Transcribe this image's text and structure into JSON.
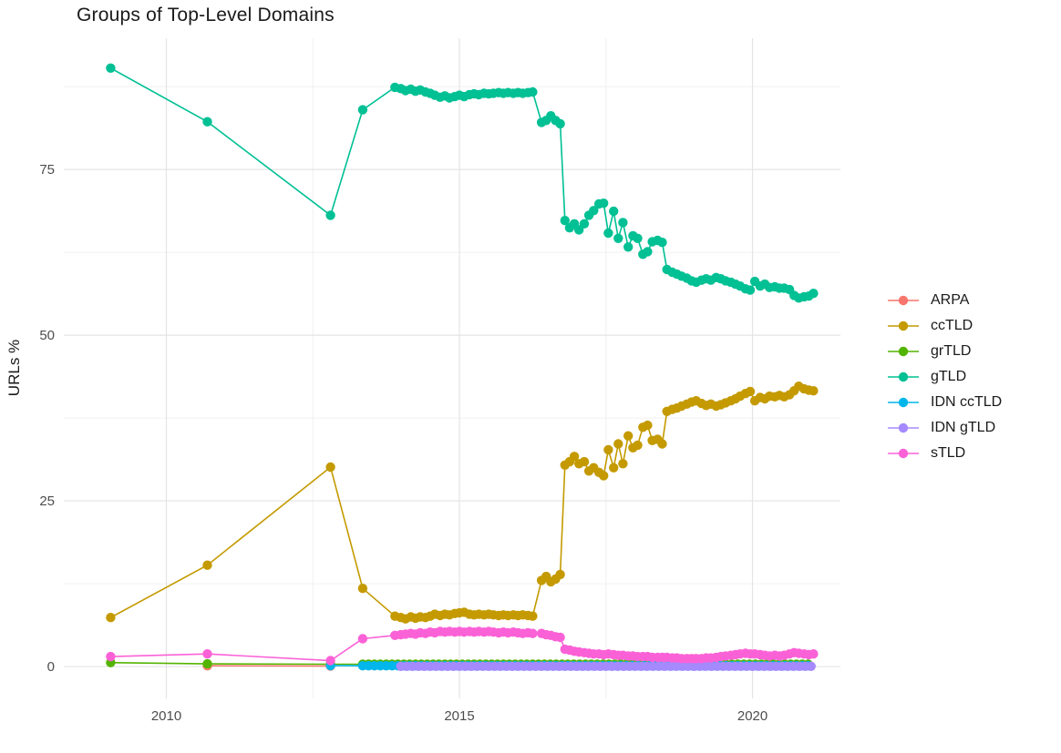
{
  "chart_data": {
    "type": "scatter",
    "title": "Groups of Top-Level Domains",
    "ylabel": "URLs %",
    "xlabel": "",
    "grid": "major+minor",
    "legend_position": "right",
    "x_range": [
      2008.25,
      2021.5
    ],
    "y_range": [
      -4.8,
      94.8
    ],
    "x_ticks": [
      2010,
      2015,
      2020
    ],
    "x_tick_labels": [
      "2010",
      "2015",
      "2020"
    ],
    "x_minor_ticks": [
      2012.5,
      2017.5
    ],
    "y_ticks": [
      0,
      25,
      50,
      75
    ],
    "y_tick_labels": [
      "0",
      "25",
      "50",
      "75"
    ],
    "y_minor_ticks": [
      12.5,
      37.5,
      62.5,
      87.5
    ],
    "grid_major_color": "#e4e4e4",
    "grid_minor_color": "#f0f0f0",
    "tick_label_color": "#4d4d4d",
    "series": [
      {
        "name": "ARPA",
        "color": "#F8766D",
        "points": [
          [
            2010.7,
            0.12
          ],
          [
            2012.8,
            0.08
          ]
        ]
      },
      {
        "name": "ccTLD",
        "color": "#C49A00",
        "points": [
          [
            2009.05,
            7.4
          ],
          [
            2010.7,
            15.3
          ],
          [
            2012.8,
            30.1
          ],
          [
            2013.35,
            11.8
          ],
          [
            2013.9,
            7.6
          ],
          [
            2014,
            7.4
          ],
          [
            2014.08,
            7.2
          ],
          [
            2014.17,
            7.5
          ],
          [
            2014.25,
            7.3
          ],
          [
            2014.33,
            7.5
          ],
          [
            2014.42,
            7.4
          ],
          [
            2014.5,
            7.6
          ],
          [
            2014.58,
            7.9
          ],
          [
            2014.67,
            7.7
          ],
          [
            2014.75,
            7.9
          ],
          [
            2014.83,
            7.8
          ],
          [
            2014.92,
            8.0
          ],
          [
            2015,
            8.1
          ],
          [
            2015.08,
            8.2
          ],
          [
            2015.17,
            7.9
          ],
          [
            2015.25,
            7.8
          ],
          [
            2015.33,
            7.9
          ],
          [
            2015.42,
            7.8
          ],
          [
            2015.5,
            7.9
          ],
          [
            2015.58,
            7.8
          ],
          [
            2015.67,
            7.7
          ],
          [
            2015.75,
            7.8
          ],
          [
            2015.83,
            7.7
          ],
          [
            2015.92,
            7.8
          ],
          [
            2016,
            7.7
          ],
          [
            2016.08,
            7.8
          ],
          [
            2016.17,
            7.7
          ],
          [
            2016.25,
            7.6
          ],
          [
            2016.4,
            13.0
          ],
          [
            2016.48,
            13.6
          ],
          [
            2016.56,
            12.8
          ],
          [
            2016.64,
            13.2
          ],
          [
            2016.72,
            13.9
          ],
          [
            2016.8,
            30.4
          ],
          [
            2016.88,
            30.9
          ],
          [
            2016.96,
            31.7
          ],
          [
            2017.04,
            30.6
          ],
          [
            2017.13,
            30.9
          ],
          [
            2017.21,
            29.5
          ],
          [
            2017.29,
            30.0
          ],
          [
            2017.38,
            29.3
          ],
          [
            2017.46,
            28.8
          ],
          [
            2017.54,
            32.7
          ],
          [
            2017.63,
            30.0
          ],
          [
            2017.71,
            33.6
          ],
          [
            2017.79,
            30.6
          ],
          [
            2017.88,
            34.8
          ],
          [
            2017.96,
            33.0
          ],
          [
            2018.04,
            33.4
          ],
          [
            2018.13,
            36.1
          ],
          [
            2018.21,
            36.4
          ],
          [
            2018.29,
            34.1
          ],
          [
            2018.38,
            34.3
          ],
          [
            2018.46,
            33.6
          ],
          [
            2018.54,
            38.5
          ],
          [
            2018.63,
            38.8
          ],
          [
            2018.71,
            39.0
          ],
          [
            2018.79,
            39.3
          ],
          [
            2018.88,
            39.6
          ],
          [
            2018.96,
            39.9
          ],
          [
            2019.04,
            40.1
          ],
          [
            2019.13,
            39.7
          ],
          [
            2019.21,
            39.4
          ],
          [
            2019.29,
            39.6
          ],
          [
            2019.38,
            39.3
          ],
          [
            2019.46,
            39.5
          ],
          [
            2019.54,
            39.8
          ],
          [
            2019.63,
            40.1
          ],
          [
            2019.71,
            40.4
          ],
          [
            2019.79,
            40.8
          ],
          [
            2019.88,
            41.2
          ],
          [
            2019.96,
            41.5
          ],
          [
            2020.04,
            40.1
          ],
          [
            2020.13,
            40.6
          ],
          [
            2020.21,
            40.4
          ],
          [
            2020.29,
            40.8
          ],
          [
            2020.38,
            40.7
          ],
          [
            2020.46,
            40.9
          ],
          [
            2020.54,
            40.7
          ],
          [
            2020.63,
            41.0
          ],
          [
            2020.71,
            41.6
          ],
          [
            2020.79,
            42.3
          ],
          [
            2020.88,
            41.9
          ],
          [
            2020.96,
            41.7
          ],
          [
            2021.04,
            41.6
          ]
        ]
      },
      {
        "name": "grTLD",
        "color": "#53B400",
        "points": [
          [
            2009.05,
            0.6
          ],
          [
            2010.7,
            0.4
          ],
          [
            2012.8,
            0.35
          ]
        ],
        "dense_fill": {
          "x_start": 2013.35,
          "x_end": 2021.04,
          "x_step": 0.1,
          "y": 0.35
        }
      },
      {
        "name": "gTLD",
        "color": "#00C094",
        "points": [
          [
            2009.05,
            90.3
          ],
          [
            2010.7,
            82.2
          ],
          [
            2012.8,
            68.1
          ],
          [
            2013.35,
            84.0
          ],
          [
            2013.9,
            87.4
          ],
          [
            2014,
            87.2
          ],
          [
            2014.08,
            86.9
          ],
          [
            2014.17,
            87.1
          ],
          [
            2014.25,
            86.8
          ],
          [
            2014.33,
            87.0
          ],
          [
            2014.42,
            86.7
          ],
          [
            2014.5,
            86.5
          ],
          [
            2014.58,
            86.2
          ],
          [
            2014.67,
            85.9
          ],
          [
            2014.75,
            86.1
          ],
          [
            2014.83,
            85.8
          ],
          [
            2014.92,
            86.0
          ],
          [
            2015,
            86.2
          ],
          [
            2015.08,
            86.0
          ],
          [
            2015.17,
            86.3
          ],
          [
            2015.25,
            86.4
          ],
          [
            2015.33,
            86.3
          ],
          [
            2015.42,
            86.5
          ],
          [
            2015.5,
            86.4
          ],
          [
            2015.58,
            86.5
          ],
          [
            2015.67,
            86.6
          ],
          [
            2015.75,
            86.5
          ],
          [
            2015.83,
            86.6
          ],
          [
            2015.92,
            86.5
          ],
          [
            2016,
            86.6
          ],
          [
            2016.08,
            86.5
          ],
          [
            2016.17,
            86.6
          ],
          [
            2016.25,
            86.7
          ],
          [
            2016.4,
            82.1
          ],
          [
            2016.48,
            82.4
          ],
          [
            2016.56,
            83.1
          ],
          [
            2016.64,
            82.4
          ],
          [
            2016.72,
            81.9
          ],
          [
            2016.8,
            67.3
          ],
          [
            2016.88,
            66.2
          ],
          [
            2016.96,
            66.8
          ],
          [
            2017.04,
            65.9
          ],
          [
            2017.13,
            66.8
          ],
          [
            2017.21,
            68.1
          ],
          [
            2017.29,
            68.8
          ],
          [
            2017.38,
            69.8
          ],
          [
            2017.46,
            69.9
          ],
          [
            2017.54,
            65.4
          ],
          [
            2017.63,
            68.7
          ],
          [
            2017.71,
            64.6
          ],
          [
            2017.79,
            67.0
          ],
          [
            2017.88,
            63.3
          ],
          [
            2017.96,
            65.0
          ],
          [
            2018.04,
            64.6
          ],
          [
            2018.13,
            62.2
          ],
          [
            2018.21,
            62.6
          ],
          [
            2018.29,
            64.1
          ],
          [
            2018.38,
            64.3
          ],
          [
            2018.46,
            64.0
          ],
          [
            2018.54,
            59.9
          ],
          [
            2018.63,
            59.5
          ],
          [
            2018.71,
            59.2
          ],
          [
            2018.79,
            58.9
          ],
          [
            2018.88,
            58.6
          ],
          [
            2018.96,
            58.2
          ],
          [
            2019.04,
            58.0
          ],
          [
            2019.13,
            58.3
          ],
          [
            2019.21,
            58.5
          ],
          [
            2019.29,
            58.3
          ],
          [
            2019.38,
            58.7
          ],
          [
            2019.46,
            58.5
          ],
          [
            2019.54,
            58.2
          ],
          [
            2019.63,
            58.0
          ],
          [
            2019.71,
            57.7
          ],
          [
            2019.79,
            57.4
          ],
          [
            2019.88,
            57.0
          ],
          [
            2019.96,
            56.8
          ],
          [
            2020.04,
            58.1
          ],
          [
            2020.13,
            57.4
          ],
          [
            2020.21,
            57.7
          ],
          [
            2020.29,
            57.2
          ],
          [
            2020.38,
            57.3
          ],
          [
            2020.46,
            57.1
          ],
          [
            2020.54,
            57.1
          ],
          [
            2020.63,
            56.9
          ],
          [
            2020.71,
            56.0
          ],
          [
            2020.79,
            55.6
          ],
          [
            2020.88,
            55.8
          ],
          [
            2020.96,
            55.9
          ],
          [
            2021.04,
            56.3
          ]
        ]
      },
      {
        "name": "IDN ccTLD",
        "color": "#00B6EB",
        "points": [
          [
            2012.8,
            0.15
          ]
        ],
        "dense_fill": {
          "x_start": 2013.35,
          "x_end": 2021.04,
          "x_step": 0.1,
          "y": 0.12
        }
      },
      {
        "name": "IDN gTLD",
        "color": "#A58AFF",
        "points": [],
        "dense_fill": {
          "x_start": 2014.0,
          "x_end": 2021.04,
          "x_step": 0.1,
          "y": 0.03
        }
      },
      {
        "name": "sTLD",
        "color": "#FB61D7",
        "points": [
          [
            2009.05,
            1.5
          ],
          [
            2010.7,
            1.9
          ],
          [
            2012.8,
            0.9
          ],
          [
            2013.35,
            4.2
          ],
          [
            2013.9,
            4.7
          ],
          [
            2014,
            4.8
          ],
          [
            2014.08,
            4.9
          ],
          [
            2014.17,
            5.0
          ],
          [
            2014.25,
            4.9
          ],
          [
            2014.33,
            5.1
          ],
          [
            2014.42,
            5.0
          ],
          [
            2014.5,
            5.2
          ],
          [
            2014.58,
            5.1
          ],
          [
            2014.67,
            5.3
          ],
          [
            2014.75,
            5.2
          ],
          [
            2014.83,
            5.3
          ],
          [
            2014.92,
            5.2
          ],
          [
            2015,
            5.3
          ],
          [
            2015.08,
            5.2
          ],
          [
            2015.17,
            5.3
          ],
          [
            2015.25,
            5.2
          ],
          [
            2015.33,
            5.3
          ],
          [
            2015.42,
            5.2
          ],
          [
            2015.5,
            5.3
          ],
          [
            2015.58,
            5.2
          ],
          [
            2015.67,
            5.1
          ],
          [
            2015.75,
            5.2
          ],
          [
            2015.83,
            5.1
          ],
          [
            2015.92,
            5.2
          ],
          [
            2016,
            5.1
          ],
          [
            2016.08,
            5.0
          ],
          [
            2016.17,
            5.1
          ],
          [
            2016.25,
            5.0
          ],
          [
            2016.4,
            5.0
          ],
          [
            2016.48,
            4.8
          ],
          [
            2016.56,
            4.7
          ],
          [
            2016.64,
            4.5
          ],
          [
            2016.72,
            4.4
          ],
          [
            2016.8,
            2.6
          ],
          [
            2016.88,
            2.5
          ],
          [
            2016.96,
            2.3
          ],
          [
            2017.04,
            2.2
          ],
          [
            2017.13,
            2.1
          ],
          [
            2017.21,
            2.0
          ],
          [
            2017.29,
            1.9
          ],
          [
            2017.38,
            1.9
          ],
          [
            2017.46,
            1.8
          ],
          [
            2017.54,
            1.9
          ],
          [
            2017.63,
            1.8
          ],
          [
            2017.71,
            1.7
          ],
          [
            2017.79,
            1.7
          ],
          [
            2017.88,
            1.6
          ],
          [
            2017.96,
            1.6
          ],
          [
            2018.04,
            1.5
          ],
          [
            2018.13,
            1.5
          ],
          [
            2018.21,
            1.5
          ],
          [
            2018.29,
            1.4
          ],
          [
            2018.38,
            1.4
          ],
          [
            2018.46,
            1.4
          ],
          [
            2018.54,
            1.4
          ],
          [
            2018.63,
            1.3
          ],
          [
            2018.71,
            1.3
          ],
          [
            2018.79,
            1.2
          ],
          [
            2018.88,
            1.2
          ],
          [
            2018.96,
            1.2
          ],
          [
            2019.04,
            1.2
          ],
          [
            2019.13,
            1.2
          ],
          [
            2019.21,
            1.3
          ],
          [
            2019.29,
            1.3
          ],
          [
            2019.38,
            1.4
          ],
          [
            2019.46,
            1.5
          ],
          [
            2019.54,
            1.6
          ],
          [
            2019.63,
            1.7
          ],
          [
            2019.71,
            1.8
          ],
          [
            2019.79,
            1.9
          ],
          [
            2019.88,
            2.0
          ],
          [
            2019.96,
            1.9
          ],
          [
            2020.04,
            1.9
          ],
          [
            2020.13,
            1.8
          ],
          [
            2020.21,
            1.7
          ],
          [
            2020.29,
            1.6
          ],
          [
            2020.38,
            1.7
          ],
          [
            2020.46,
            1.6
          ],
          [
            2020.54,
            1.7
          ],
          [
            2020.63,
            1.9
          ],
          [
            2020.71,
            2.1
          ],
          [
            2020.79,
            2.0
          ],
          [
            2020.88,
            1.9
          ],
          [
            2020.96,
            1.8
          ],
          [
            2021.04,
            1.9
          ]
        ]
      }
    ]
  }
}
